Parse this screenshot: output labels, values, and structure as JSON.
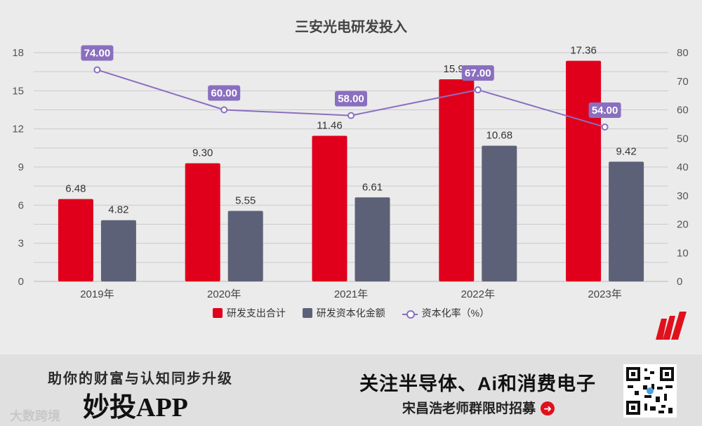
{
  "chart_data": {
    "type": "bar",
    "title": "三安光电研发投入",
    "categories": [
      "2019年",
      "2020年",
      "2021年",
      "2022年",
      "2023年"
    ],
    "series": [
      {
        "name": "研发支出合计",
        "type": "bar",
        "axis": "left",
        "color": "#e0001b",
        "values": [
          6.48,
          9.3,
          11.46,
          15.9,
          17.36
        ]
      },
      {
        "name": "研发资本化金额",
        "type": "bar",
        "axis": "left",
        "color": "#5d6178",
        "values": [
          4.82,
          5.55,
          6.61,
          10.68,
          9.42
        ]
      },
      {
        "name": "资本化率（%）",
        "type": "line",
        "axis": "right",
        "color": "#8a6fc0",
        "values": [
          74.0,
          60.0,
          58.0,
          67.0,
          54.0
        ]
      }
    ],
    "bar_labels": [
      [
        "6.48",
        "9.30",
        "11.46",
        "15.90",
        "17.36"
      ],
      [
        "4.82",
        "5.55",
        "6.61",
        "10.68",
        "9.42"
      ]
    ],
    "line_labels": [
      "74.00",
      "60.00",
      "58.00",
      "67.00",
      "54.00"
    ],
    "y_left": {
      "ticks": [
        "0",
        "3",
        "6",
        "9",
        "12",
        "15",
        "18"
      ],
      "ylim": [
        0,
        18
      ]
    },
    "y_right": {
      "ticks": [
        "0",
        "10",
        "20",
        "30",
        "40",
        "50",
        "60",
        "70",
        "80"
      ],
      "ylim": [
        0,
        80
      ]
    },
    "legend_position": "bottom"
  },
  "legend": {
    "items": [
      "研发支出合计",
      "研发资本化金额",
      "资本化率（%）"
    ]
  },
  "banner": {
    "slogan": "助你的财富与认知同步升级",
    "app_name": "妙投APP",
    "watermark": "大数跨境",
    "headline": "关注半导体、Ai和消费电子",
    "subline": "宋昌浩老师群限时招募"
  }
}
